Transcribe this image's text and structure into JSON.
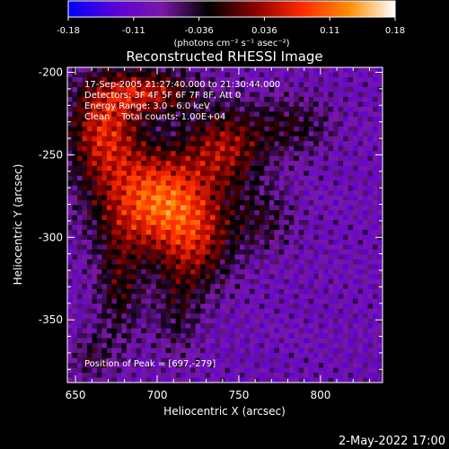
{
  "chart_data": {
    "type": "heatmap",
    "title": "Reconstructed RHESSI Image",
    "xlabel": "Heliocentric X (arcsec)",
    "ylabel": "Heliocentric Y (arcsec)",
    "xlim": [
      645,
      838
    ],
    "ylim": [
      -388,
      -197
    ],
    "xticks": [
      650,
      700,
      750,
      800
    ],
    "yticks": [
      -200,
      -250,
      -300,
      -350
    ],
    "colorbar": {
      "min": -0.18,
      "max": 0.18,
      "tick_labels": [
        "-0.18",
        "-0.11",
        "-0.036",
        "0.036",
        "0.11",
        "0.18"
      ],
      "unit_label": "(photons cm⁻² s⁻¹ asec⁻²)",
      "colormap": [
        "#0000ff",
        "#5a00d8",
        "#7a18a8",
        "#000000",
        "#8b0000",
        "#ff2a00",
        "#ff8c00",
        "#ffffff"
      ]
    },
    "annotations": [
      "17-Sep-2005 21:27:40.000 to 21:30:44.000",
      "Detectors: 3F 4F 5F 6F 7F 8F, Att 0",
      "Energy Range: 3.0 - 6.0 keV",
      "Clean    Total counts: 1.00E+04"
    ],
    "peak_label": "Position of Peak = [697,-279]",
    "peak": [
      697,
      -279
    ],
    "sources": [
      {
        "x": 700,
        "y": -278,
        "sx": 24,
        "sy": 22,
        "amp": 0.19
      },
      {
        "x": 667,
        "y": -235,
        "sx": 15,
        "sy": 22,
        "amp": 0.14
      },
      {
        "x": 695,
        "y": -212,
        "sx": 20,
        "sy": 10,
        "amp": 0.12
      },
      {
        "x": 742,
        "y": -245,
        "sx": 17,
        "sy": 17,
        "amp": 0.11
      },
      {
        "x": 725,
        "y": -305,
        "sx": 15,
        "sy": 20,
        "amp": 0.09
      },
      {
        "x": 783,
        "y": -232,
        "sx": 17,
        "sy": 13,
        "amp": 0.06
      },
      {
        "x": 677,
        "y": -330,
        "sx": 10,
        "sy": 24,
        "amp": 0.07
      },
      {
        "x": 712,
        "y": -345,
        "sx": 10,
        "sy": 20,
        "amp": 0.05
      },
      {
        "x": 765,
        "y": -290,
        "sx": 14,
        "sy": 14,
        "amp": 0.05
      },
      {
        "x": 660,
        "y": -372,
        "sx": 9,
        "sy": 10,
        "amp": 0.05
      }
    ],
    "background": -0.09,
    "grid": false
  },
  "footer": {
    "date": "2-May-2022 17:00"
  }
}
